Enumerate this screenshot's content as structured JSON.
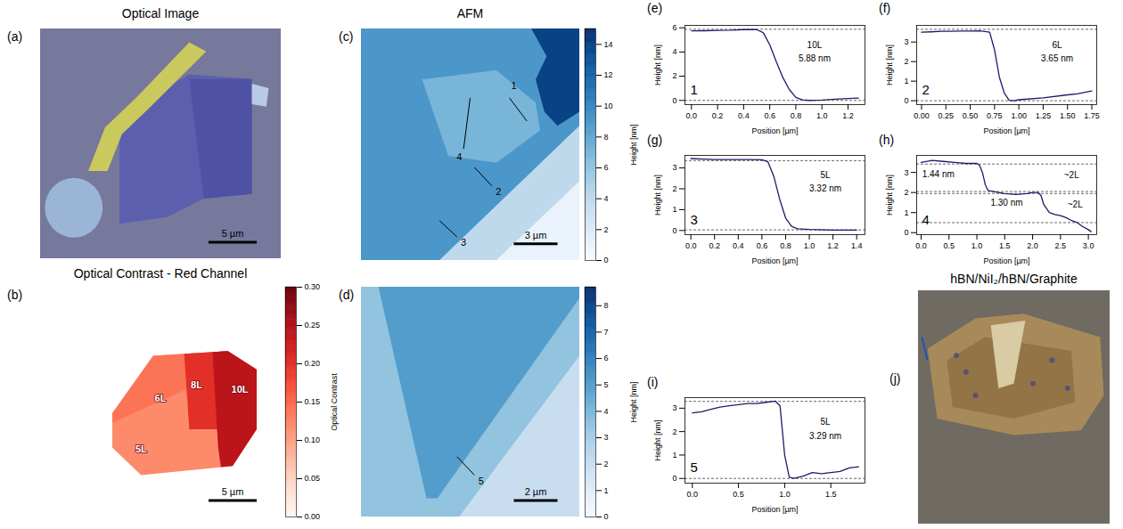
{
  "chart_data": [
    {
      "type": "image",
      "panel": "(a)",
      "title": "Optical Image",
      "scale_bar": "5 µm"
    },
    {
      "type": "heatmap",
      "panel": "(b)",
      "title": "Optical Contrast - Red Channel",
      "scale_bar": "5 µm",
      "colorbar": {
        "label": "Optical Contrast",
        "range": [
          0,
          0.3
        ],
        "ticks": [
          {
            "value": 0,
            "label": "0.00"
          },
          0.05,
          {
            "value": 0.1,
            "label": "0.10"
          },
          0.15,
          {
            "value": 0.2,
            "label": "0.20"
          },
          0.25,
          {
            "value": 0.3,
            "label": "0.30"
          }
        ]
      },
      "regions": [
        {
          "label": "5L",
          "value": 0.12
        },
        {
          "label": "6L",
          "value": 0.14
        },
        {
          "label": "8L",
          "value": 0.2
        },
        {
          "label": "10L",
          "value": 0.24
        }
      ]
    },
    {
      "type": "heatmap",
      "panel": "(c)",
      "title": "AFM",
      "scale_bar": "3 µm",
      "colorbar": {
        "label": "Height [nm]",
        "range": [
          0,
          15
        ],
        "ticks": [
          0,
          2,
          4,
          6,
          8,
          10,
          12,
          14
        ]
      },
      "regions": [
        {
          "value": 9
        },
        {
          "value": 7
        },
        {
          "value": 14
        },
        {
          "value": 4
        },
        {
          "value": 1
        }
      ],
      "profile_markers": [
        "1",
        "2",
        "3",
        "4"
      ]
    },
    {
      "type": "heatmap",
      "panel": "(d)",
      "scale_bar": "2 µm",
      "colorbar": {
        "label": "Height [nm]",
        "range": [
          0,
          8.7
        ],
        "ticks": [
          0,
          1,
          2,
          3,
          4,
          5,
          6,
          7,
          8
        ]
      },
      "regions": [
        {
          "value": 3.5
        },
        {
          "value": 5
        },
        {
          "value": 2
        }
      ],
      "profile_markers": [
        "5"
      ]
    },
    {
      "type": "line",
      "panel": "(e)",
      "profile": "1",
      "x_label": "Position [µm]",
      "y_label": "Height [nm]",
      "color": "#1c1c6b",
      "x": [
        0,
        0.1,
        0.2,
        0.3,
        0.4,
        0.5,
        0.55,
        0.6,
        0.65,
        0.7,
        0.75,
        0.8,
        0.85,
        0.9,
        1.0,
        1.1,
        1.2,
        1.28
      ],
      "values": [
        5.75,
        5.76,
        5.78,
        5.8,
        5.85,
        5.85,
        5.6,
        4.6,
        3.2,
        1.9,
        0.9,
        0.25,
        0.05,
        0,
        0.02,
        0.1,
        0.15,
        0.2
      ],
      "xlim": [
        -0.05,
        1.33
      ],
      "ylim": [
        -0.35,
        6.2
      ],
      "xticks": [
        {
          "value": 0,
          "label": "0.0"
        },
        0.2,
        0.4,
        0.6,
        0.8,
        {
          "value": 1,
          "label": "1.0"
        },
        1.2
      ],
      "yticks": [
        0,
        2,
        4,
        6
      ],
      "reference_lines": [
        0,
        5.88
      ],
      "annotations": [
        "10L",
        "5.88 nm"
      ]
    },
    {
      "type": "line",
      "panel": "(f)",
      "profile": "2",
      "x_label": "Position [µm]",
      "y_label": "Height [nm]",
      "color": "#1c1c6b",
      "x": [
        0,
        0.1,
        0.2,
        0.3,
        0.4,
        0.5,
        0.6,
        0.7,
        0.75,
        0.8,
        0.85,
        0.9,
        0.95,
        1.0,
        1.25,
        1.5,
        1.6,
        1.75
      ],
      "values": [
        3.5,
        3.52,
        3.55,
        3.55,
        3.56,
        3.56,
        3.57,
        3.5,
        2.6,
        1.2,
        0.4,
        0.02,
        0,
        0.05,
        0.15,
        0.3,
        0.35,
        0.5
      ],
      "xlim": [
        -0.05,
        1.8
      ],
      "ylim": [
        -0.2,
        3.85
      ],
      "xticks": [
        {
          "value": 0,
          "label": "0.00"
        },
        0.25,
        {
          "value": 0.5,
          "label": "0.50"
        },
        0.75,
        {
          "value": 1,
          "label": "1.00"
        },
        1.25,
        {
          "value": 1.5,
          "label": "1.50"
        },
        1.75
      ],
      "yticks": [
        0,
        1,
        2,
        3
      ],
      "reference_lines": [
        0,
        3.65
      ],
      "annotations": [
        "6L",
        "3.65 nm"
      ]
    },
    {
      "type": "line",
      "panel": "(g)",
      "profile": "3",
      "x_label": "Position [µm]",
      "y_label": "Height [nm]",
      "color": "#1c1c6b",
      "x": [
        0,
        0.1,
        0.2,
        0.3,
        0.4,
        0.5,
        0.6,
        0.65,
        0.7,
        0.75,
        0.8,
        0.85,
        0.9,
        1.0,
        1.2,
        1.4
      ],
      "values": [
        3.45,
        3.42,
        3.4,
        3.4,
        3.4,
        3.4,
        3.39,
        3.3,
        2.6,
        1.5,
        0.6,
        0.2,
        0.08,
        0.05,
        0.02,
        0.02
      ],
      "xlim": [
        -0.05,
        1.47
      ],
      "ylim": [
        -0.2,
        3.6
      ],
      "xticks": [
        {
          "value": 0,
          "label": "0.0"
        },
        0.2,
        0.4,
        0.6,
        0.8,
        {
          "value": 1,
          "label": "1.0"
        },
        1.2,
        1.4
      ],
      "yticks": [
        0,
        1,
        2,
        3
      ],
      "reference_lines": [
        0.03,
        3.35
      ],
      "annotations": [
        "5L",
        "3.32 nm"
      ]
    },
    {
      "type": "line",
      "panel": "(h)",
      "profile": "4",
      "x_label": "Position [µm]",
      "y_label": "Height [nm]",
      "color": "#1c1c6b",
      "x": [
        0,
        0.2,
        0.4,
        0.6,
        0.8,
        1.0,
        1.05,
        1.1,
        1.15,
        1.2,
        1.3,
        1.5,
        1.7,
        1.9,
        2.0,
        2.1,
        2.15,
        2.2,
        2.3,
        2.4,
        2.5,
        2.6,
        2.7,
        2.8,
        2.9,
        3.0,
        3.05
      ],
      "values": [
        3.5,
        3.6,
        3.55,
        3.5,
        3.45,
        3.45,
        3.35,
        3.0,
        2.4,
        2.1,
        2.05,
        1.95,
        1.9,
        1.95,
        2.0,
        2.0,
        1.85,
        1.4,
        1.0,
        0.9,
        0.85,
        0.75,
        0.6,
        0.5,
        0.3,
        0.15,
        0.05
      ],
      "xlim": [
        -0.08,
        3.15
      ],
      "ylim": [
        -0.1,
        3.85
      ],
      "xticks": [
        {
          "value": 0,
          "label": "0.0"
        },
        0.5,
        {
          "value": 1,
          "label": "1.0"
        },
        1.5,
        {
          "value": 2,
          "label": "2.0"
        },
        2.5,
        {
          "value": 3,
          "label": "3.0"
        }
      ],
      "yticks": [
        0,
        1,
        2,
        3
      ],
      "reference_lines": [
        3.42,
        2.05,
        1.95,
        0.5
      ],
      "annotations": [
        "1.44 nm",
        "~2L",
        "1.30 nm",
        "~2L"
      ]
    },
    {
      "type": "line",
      "panel": "(i)",
      "profile": "5",
      "x_label": "Position [µm]",
      "y_label": "Height [nm]",
      "color": "#1c1c6b",
      "x": [
        0,
        0.1,
        0.2,
        0.3,
        0.4,
        0.5,
        0.6,
        0.7,
        0.8,
        0.9,
        0.95,
        1.0,
        1.05,
        1.1,
        1.2,
        1.3,
        1.4,
        1.5,
        1.6,
        1.7,
        1.8
      ],
      "values": [
        2.8,
        2.85,
        2.95,
        3.05,
        3.1,
        3.15,
        3.2,
        3.2,
        3.25,
        3.3,
        3.1,
        1.0,
        0.05,
        0,
        0.1,
        0.25,
        0.2,
        0.25,
        0.3,
        0.45,
        0.5
      ],
      "xlim": [
        -0.08,
        1.87
      ],
      "ylim": [
        -0.2,
        3.45
      ],
      "xticks": [
        {
          "value": 0,
          "label": "0.0"
        },
        0.5,
        {
          "value": 1,
          "label": "1.0"
        },
        1.5
      ],
      "yticks": [
        0,
        1,
        2,
        3
      ],
      "reference_lines": [
        0,
        3.29
      ],
      "annotations": [
        "5L",
        "3.29 nm"
      ]
    },
    {
      "type": "image",
      "panel": "(j)",
      "title": "hBN/NiI₂/hBN/Graphite"
    }
  ]
}
